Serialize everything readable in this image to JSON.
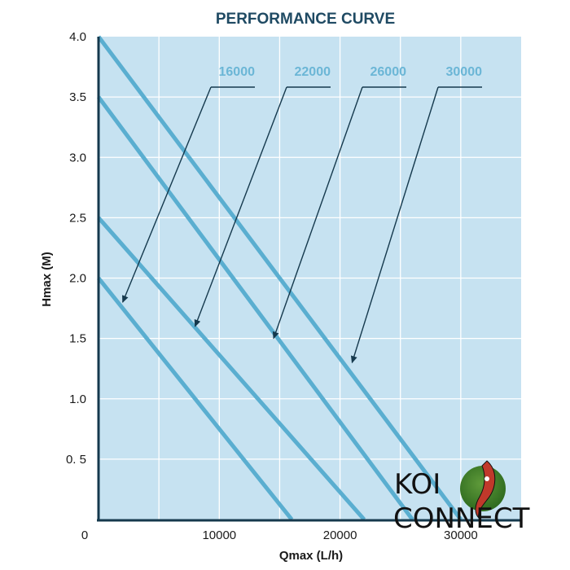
{
  "chart_data": {
    "type": "line",
    "title": "PERFORMANCE CURVE",
    "xlabel": "Qmax (L/h)",
    "ylabel": "Hmax (M)",
    "xlim": [
      0,
      35000
    ],
    "ylim": [
      0,
      4.0
    ],
    "x_ticks": [
      {
        "value": 0,
        "label": "0"
      },
      {
        "value": 10000,
        "label": "10000"
      },
      {
        "value": 20000,
        "label": "20000"
      },
      {
        "value": 30000,
        "label": "30000"
      }
    ],
    "y_ticks": [
      {
        "value": 0.5,
        "label": "0. 5"
      },
      {
        "value": 1.0,
        "label": "1.0"
      },
      {
        "value": 1.5,
        "label": "1.5"
      },
      {
        "value": 2.0,
        "label": "2.0"
      },
      {
        "value": 2.5,
        "label": "2.5"
      },
      {
        "value": 3.0,
        "label": "3.0"
      },
      {
        "value": 3.5,
        "label": "3.5"
      },
      {
        "value": 4.0,
        "label": "4.0"
      }
    ],
    "grid": true,
    "series": [
      {
        "name": "16000",
        "points": [
          [
            0,
            2.0
          ],
          [
            16000,
            0
          ]
        ],
        "arrow_target": [
          2000,
          1.8
        ]
      },
      {
        "name": "22000",
        "points": [
          [
            0,
            2.5
          ],
          [
            22000,
            0
          ]
        ],
        "arrow_target": [
          8000,
          1.6
        ]
      },
      {
        "name": "26000",
        "points": [
          [
            0,
            3.5
          ],
          [
            26000,
            0
          ]
        ],
        "arrow_target": [
          14500,
          1.5
        ]
      },
      {
        "name": "30000",
        "points": [
          [
            0,
            4.0
          ],
          [
            30000,
            0
          ]
        ],
        "arrow_target": [
          21000,
          1.3
        ]
      }
    ],
    "colors": {
      "plot_bg": "#c6e2f1",
      "grid": "#ffffff",
      "line": "#5aaed0",
      "label": "#6bb6d6",
      "title": "#1f4a63",
      "axis": "#15394d"
    }
  },
  "logo": {
    "line1": "KOI",
    "line2": "CONNECT"
  }
}
